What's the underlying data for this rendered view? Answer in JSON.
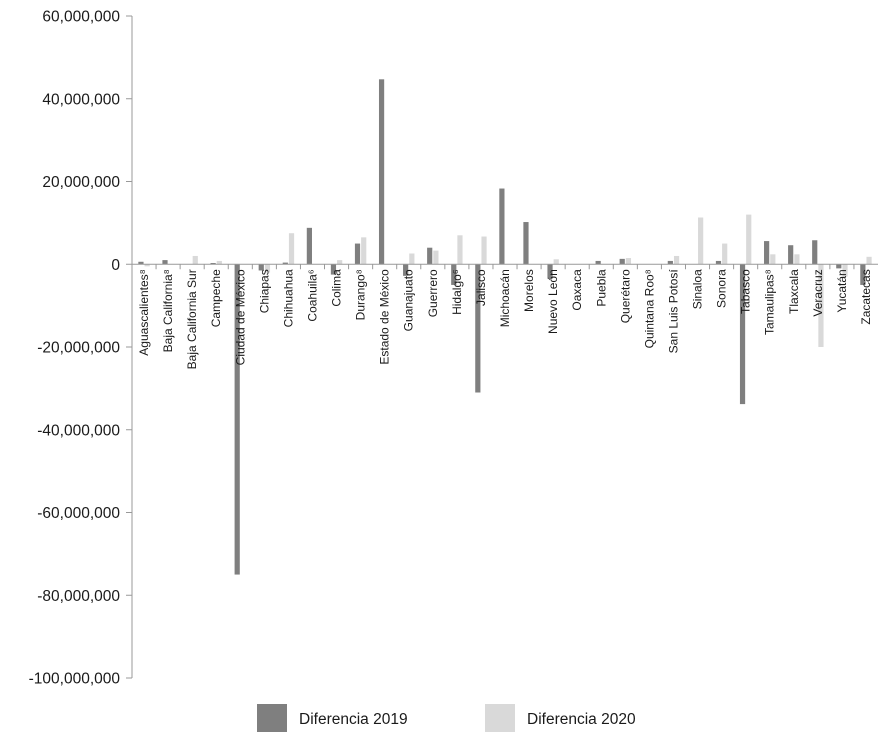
{
  "chart_data": {
    "type": "bar",
    "categories": [
      "Aguascalientes⁸",
      "Baja California⁸",
      "Baja California Sur",
      "Campeche",
      "Ciudad de México",
      "Chiapas",
      "Chihuahua",
      "Coahuila⁶",
      "Colima",
      "Durango⁸",
      "Estado de México",
      "Guanajuato",
      "Guerrero",
      "Hidalgo⁶",
      "Jalisco",
      "Michoacán",
      "Morelos",
      "Nuevo León",
      "Oaxaca",
      "Puebla",
      "Querétaro",
      "Quintana Roo⁸",
      "San Luis Potosí",
      "Sinaloa",
      "Sonora",
      "Tabasco",
      "Tamaulipas⁸",
      "Tlaxcala",
      "Veracruz",
      "Yucatán",
      "Zacatecas"
    ],
    "series": [
      {
        "name": "Diferencia 2019",
        "color": "#7f7f7f",
        "values": [
          600000,
          1000000,
          0,
          300000,
          -75000000,
          -1500000,
          400000,
          8800000,
          -2500000,
          5000000,
          44700000,
          -2800000,
          4000000,
          -5000000,
          -31000000,
          18300000,
          10200000,
          -3500000,
          0,
          800000,
          1300000,
          0,
          800000,
          0,
          800000,
          -33800000,
          5600000,
          4600000,
          5800000,
          -1000000,
          -5000000
        ]
      },
      {
        "name": "Diferencia 2020",
        "color": "#d9d9d9",
        "values": [
          -500000,
          0,
          2000000,
          800000,
          0,
          -2000000,
          7500000,
          0,
          1000000,
          6500000,
          0,
          2600000,
          3300000,
          7000000,
          6700000,
          0,
          0,
          1200000,
          0,
          0,
          1500000,
          0,
          2000000,
          11300000,
          5000000,
          12000000,
          2400000,
          2400000,
          -20000000,
          -3000000,
          1800000
        ]
      }
    ],
    "yticks": [
      "60,000,000",
      "40,000,000",
      "20,000,000",
      "0",
      "-20,000,000",
      "-40,000,000",
      "-60,000,000",
      "-80,000,000",
      "-100,000,000"
    ],
    "ylim": [
      -100000000,
      60000000
    ],
    "legend_position": "bottom",
    "grid": false
  }
}
